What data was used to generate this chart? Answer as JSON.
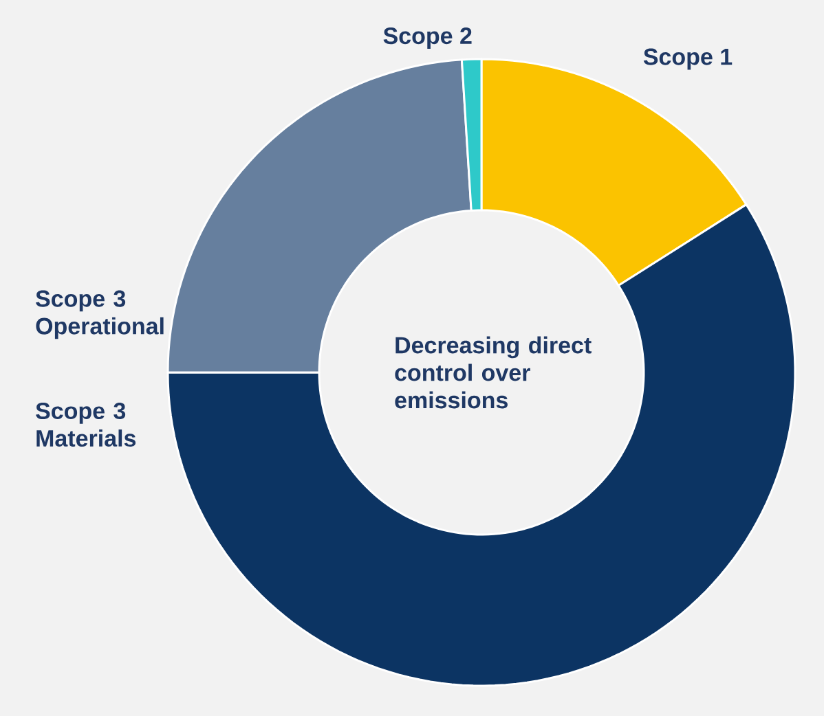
{
  "chart_data": {
    "type": "donut",
    "categories": [
      "Scope 1",
      "Scope 3 Materials",
      "Scope 3 Operational",
      "Scope 2"
    ],
    "values": [
      16,
      59,
      24,
      1
    ],
    "colors": [
      "#fbc300",
      "#0c3463",
      "#667f9e",
      "#2ec9c9"
    ],
    "annotations": [
      "Decreasing direct control over emissions"
    ]
  }
}
